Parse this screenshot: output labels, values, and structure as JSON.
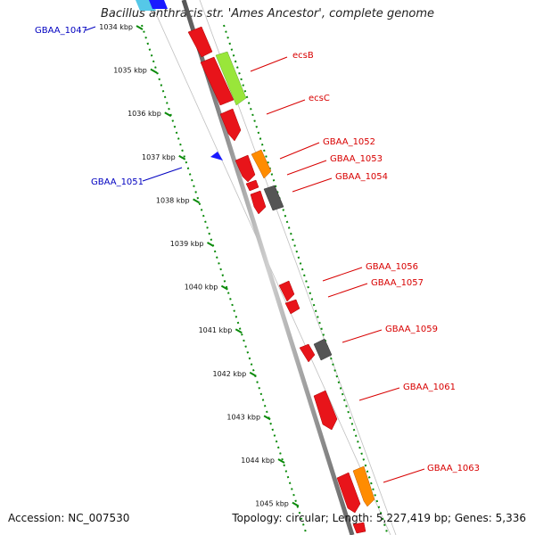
{
  "title": "Bacillus anthracis str. 'Ames Ancestor', complete genome",
  "footer": {
    "accession": "Accession: NC_007530",
    "summary": "Topology: circular; Length: 5,227,419 bp; Genes: 5,336"
  },
  "scale_ticks": [
    "1034 kbp",
    "1035 kbp",
    "1036 kbp",
    "1037 kbp",
    "1038 kbp",
    "1039 kbp",
    "1040 kbp",
    "1041 kbp",
    "1042 kbp",
    "1043 kbp",
    "1044 kbp",
    "1045 kbp"
  ],
  "gene_labels_minus": [
    "GBAA_1047",
    "GBAA_1051"
  ],
  "gene_labels_plus": [
    "ecsB",
    "ecsC",
    "GBAA_1052",
    "GBAA_1053",
    "GBAA_1054",
    "GBAA_1056",
    "GBAA_1057",
    "GBAA_1059",
    "GBAA_1061",
    "GBAA_1063"
  ],
  "colors": {
    "gene_red": "#e8141a",
    "gene_lightgreen": "#99e63a",
    "gene_orange": "#ff8c00",
    "gene_gray": "#555555",
    "gene_blue": "#1a1aff",
    "gene_cyan": "#55c8e8",
    "minus_label": "#0000c0",
    "plus_label": "#d80000",
    "tick_green": "#0a8a0a",
    "backbone": "#888888"
  }
}
